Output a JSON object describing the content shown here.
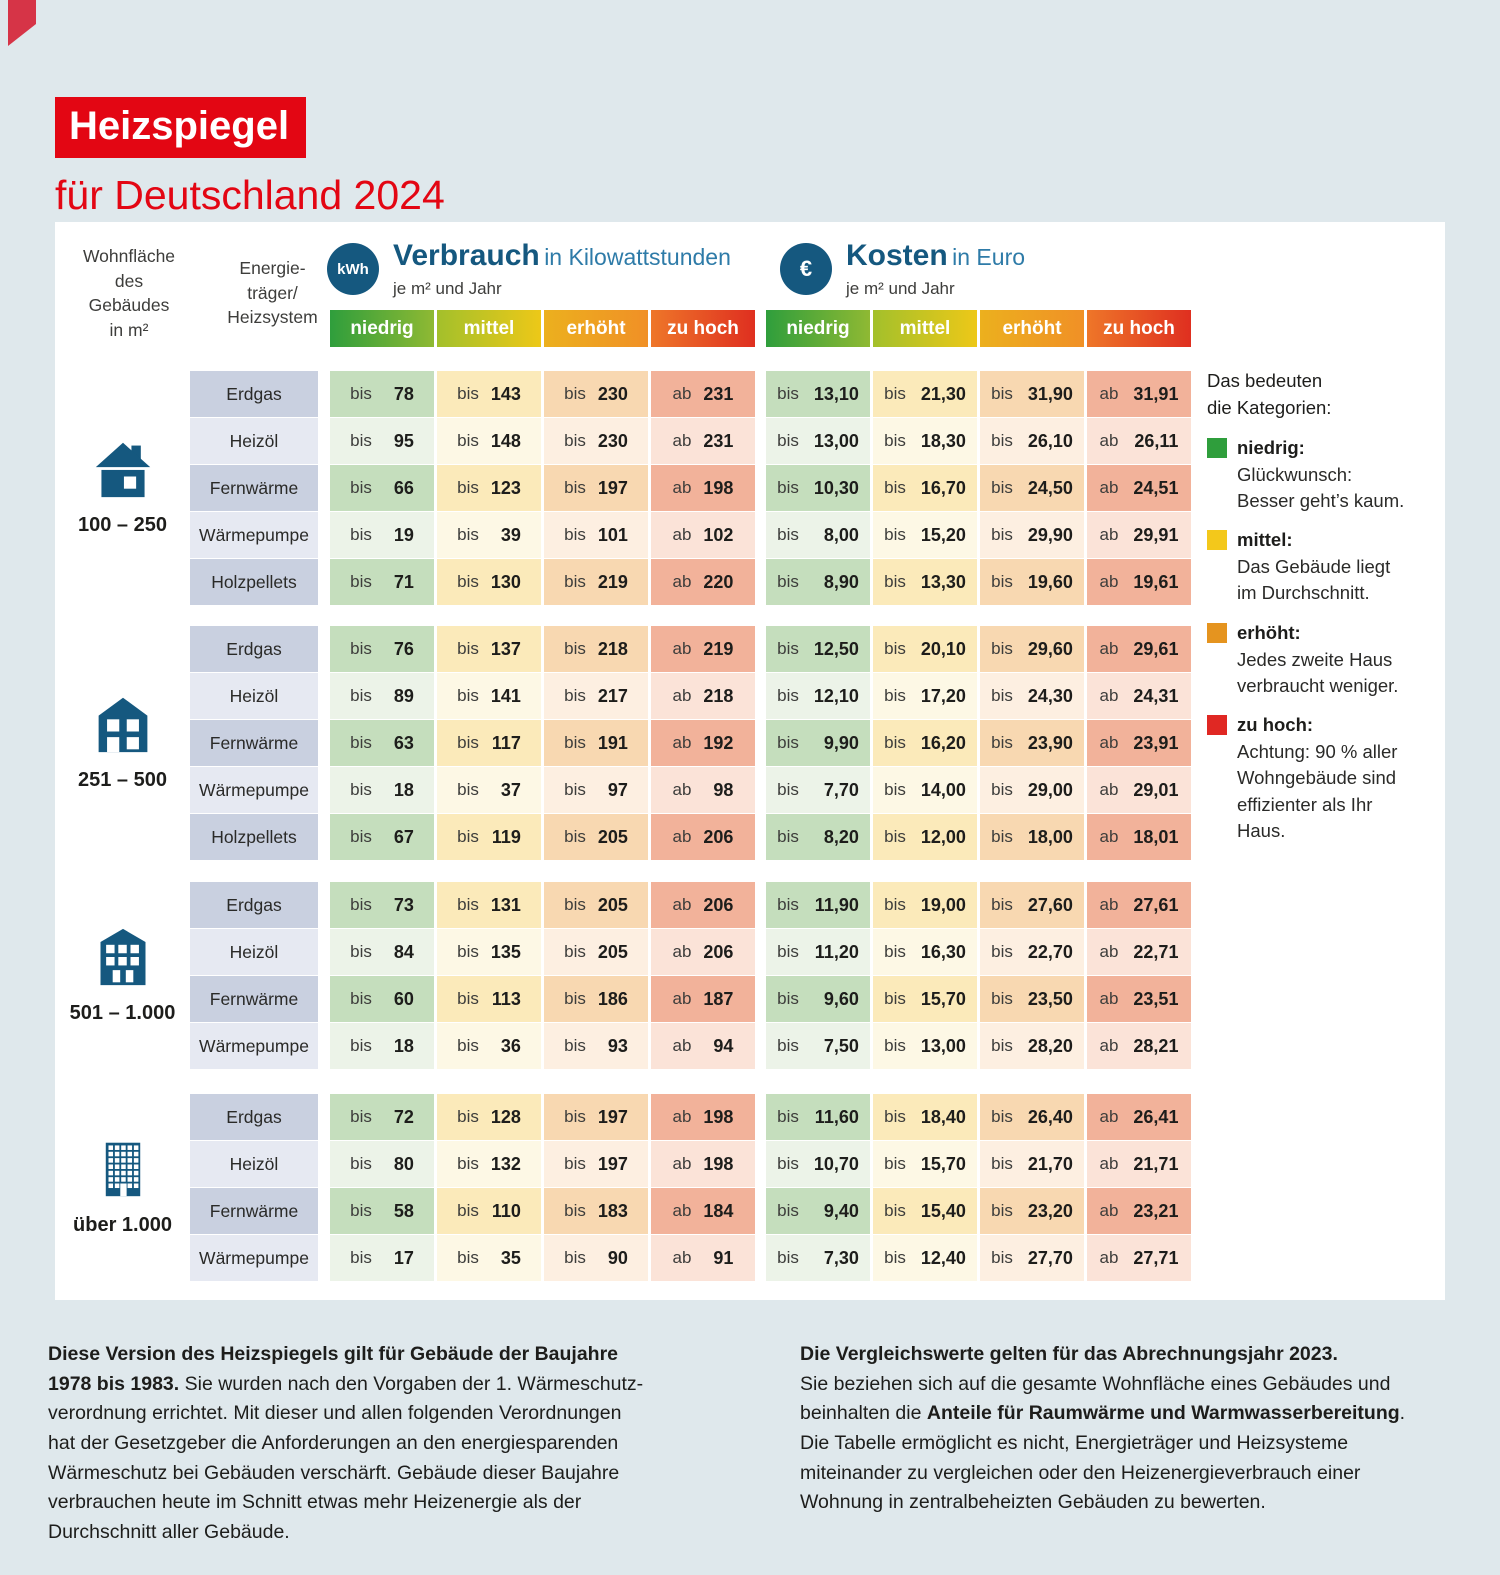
{
  "page": {
    "title_badge": "Heizspiegel",
    "title_sub": "für Deutschland 2024"
  },
  "table_header": {
    "area_label": "Wohnfläche\ndes\nGebäudes\nin m²",
    "system_label": "Energie-\nträger/\nHeizsystem",
    "verbrauch": {
      "icon": "kwh-circle-icon",
      "icon_text": "kWh",
      "title": "Verbrauch",
      "title_suffix": "in Kilowattstunden",
      "unit": "je m² und Jahr"
    },
    "kosten": {
      "icon": "euro-circle-icon",
      "icon_text": "€",
      "title": "Kosten",
      "title_suffix": "in Euro",
      "unit": "je m² und Jahr"
    }
  },
  "chart_data": {
    "type": "table",
    "title": "Heizspiegel für Deutschland 2024",
    "categories": [
      "niedrig",
      "mittel",
      "erhöht",
      "zu hoch"
    ],
    "value_prefixes": [
      "bis",
      "bis",
      "bis",
      "ab"
    ],
    "verbrauch_unit": "kWh je m² und Jahr",
    "kosten_unit": "Euro je m² und Jahr",
    "sections": [
      {
        "size_label": "100 – 250",
        "icon": "house-small-icon",
        "rows": [
          {
            "system": "Erdgas",
            "verbrauch": [
              "78",
              "143",
              "230",
              "231"
            ],
            "kosten": [
              "13,10",
              "21,30",
              "31,90",
              "31,91"
            ]
          },
          {
            "system": "Heizöl",
            "verbrauch": [
              "95",
              "148",
              "230",
              "231"
            ],
            "kosten": [
              "13,00",
              "18,30",
              "26,10",
              "26,11"
            ]
          },
          {
            "system": "Fernwärme",
            "verbrauch": [
              "66",
              "123",
              "197",
              "198"
            ],
            "kosten": [
              "10,30",
              "16,70",
              "24,50",
              "24,51"
            ]
          },
          {
            "system": "Wärmepumpe",
            "verbrauch": [
              "19",
              "39",
              "101",
              "102"
            ],
            "kosten": [
              "8,00",
              "15,20",
              "29,90",
              "29,91"
            ]
          },
          {
            "system": "Holzpellets",
            "verbrauch": [
              "71",
              "130",
              "219",
              "220"
            ],
            "kosten": [
              "8,90",
              "13,30",
              "19,60",
              "19,61"
            ]
          }
        ]
      },
      {
        "size_label": "251 – 500",
        "icon": "house-medium-icon",
        "rows": [
          {
            "system": "Erdgas",
            "verbrauch": [
              "76",
              "137",
              "218",
              "219"
            ],
            "kosten": [
              "12,50",
              "20,10",
              "29,60",
              "29,61"
            ]
          },
          {
            "system": "Heizöl",
            "verbrauch": [
              "89",
              "141",
              "217",
              "218"
            ],
            "kosten": [
              "12,10",
              "17,20",
              "24,30",
              "24,31"
            ]
          },
          {
            "system": "Fernwärme",
            "verbrauch": [
              "63",
              "117",
              "191",
              "192"
            ],
            "kosten": [
              "9,90",
              "16,20",
              "23,90",
              "23,91"
            ]
          },
          {
            "system": "Wärmepumpe",
            "verbrauch": [
              "18",
              "37",
              "97",
              "98"
            ],
            "kosten": [
              "7,70",
              "14,00",
              "29,00",
              "29,01"
            ]
          },
          {
            "system": "Holzpellets",
            "verbrauch": [
              "67",
              "119",
              "205",
              "206"
            ],
            "kosten": [
              "8,20",
              "12,00",
              "18,00",
              "18,01"
            ]
          }
        ]
      },
      {
        "size_label": "501 – 1.000",
        "icon": "building-mid-icon",
        "rows": [
          {
            "system": "Erdgas",
            "verbrauch": [
              "73",
              "131",
              "205",
              "206"
            ],
            "kosten": [
              "11,90",
              "19,00",
              "27,60",
              "27,61"
            ]
          },
          {
            "system": "Heizöl",
            "verbrauch": [
              "84",
              "135",
              "205",
              "206"
            ],
            "kosten": [
              "11,20",
              "16,30",
              "22,70",
              "22,71"
            ]
          },
          {
            "system": "Fernwärme",
            "verbrauch": [
              "60",
              "113",
              "186",
              "187"
            ],
            "kosten": [
              "9,60",
              "15,70",
              "23,50",
              "23,51"
            ]
          },
          {
            "system": "Wärmepumpe",
            "verbrauch": [
              "18",
              "36",
              "93",
              "94"
            ],
            "kosten": [
              "7,50",
              "13,00",
              "28,20",
              "28,21"
            ]
          }
        ]
      },
      {
        "size_label": "über 1.000",
        "icon": "building-tall-icon",
        "rows": [
          {
            "system": "Erdgas",
            "verbrauch": [
              "72",
              "128",
              "197",
              "198"
            ],
            "kosten": [
              "11,60",
              "18,40",
              "26,40",
              "26,41"
            ]
          },
          {
            "system": "Heizöl",
            "verbrauch": [
              "80",
              "132",
              "197",
              "198"
            ],
            "kosten": [
              "10,70",
              "15,70",
              "21,70",
              "21,71"
            ]
          },
          {
            "system": "Fernwärme",
            "verbrauch": [
              "58",
              "110",
              "183",
              "184"
            ],
            "kosten": [
              "9,40",
              "15,40",
              "23,20",
              "23,21"
            ]
          },
          {
            "system": "Wärmepumpe",
            "verbrauch": [
              "17",
              "35",
              "90",
              "91"
            ],
            "kosten": [
              "7,30",
              "12,40",
              "27,70",
              "27,71"
            ]
          }
        ]
      }
    ]
  },
  "legend": {
    "intro": "Das bedeuten\ndie Kategorien:",
    "items": [
      {
        "label": "niedrig:",
        "color": "#2f9e3c",
        "text": "Glückwunsch:\nBesser geht’s kaum."
      },
      {
        "label": "mittel:",
        "color": "#f3c81b",
        "text": "Das Gebäude liegt\nim Durchschnitt."
      },
      {
        "label": "erhöht:",
        "color": "#e5941f",
        "text": "Jedes zweite Haus\nverbraucht weniger."
      },
      {
        "label": "zu hoch:",
        "color": "#e02823",
        "text": "Achtung: 90 % aller\nWohngebäude sind\neffizienter als Ihr\nHaus."
      }
    ]
  },
  "footer": {
    "left_parts": [
      {
        "bold": true,
        "text": "Diese Version des Heizspiegels gilt für Gebäude der Baujahre\n1978 bis 1983."
      },
      {
        "bold": false,
        "text": " Sie wurden nach den Vorgaben der 1. Wärmeschutz-\nverordnung errichtet. Mit dieser und allen folgenden Verordnungen\nhat der Gesetzgeber die Anforderungen an den energiesparenden\nWärmeschutz bei Gebäuden verschärft. Gebäude dieser Baujahre\nverbrauchen heute im Schnitt etwas mehr Heizenergie als der\nDurchschnitt aller Gebäude."
      }
    ],
    "right_parts": [
      {
        "bold": true,
        "text": "Die Vergleichswerte gelten für das Abrechnungsjahr 2023."
      },
      {
        "bold": false,
        "text": "\nSie beziehen sich auf die gesamte Wohnfläche eines Gebäudes und\nbeinhalten die "
      },
      {
        "bold": true,
        "text": "Anteile für Raumwärme und Warmwasserbereitung"
      },
      {
        "bold": false,
        "text": ".\nDie Tabelle ermöglicht es nicht, Energieträger und Heizsysteme\nmiteinander zu vergleichen oder den Heizenergieverbrauch einer\nWohnung in zentralbeheizten Gebäuden zu bewerten."
      }
    ]
  },
  "colors": {
    "accent_red": "#e30613",
    "brand_blue": "#15587f",
    "background": "#dfe8ec",
    "category_green": "#2f9e3c",
    "category_yellow": "#f3c81b",
    "category_orange": "#e5941f",
    "category_red": "#e02823",
    "cell_green": "#c5debd",
    "cell_yellow": "#fbeaba",
    "cell_orange": "#f8d8b1",
    "cell_salmon": "#f2b29a"
  }
}
